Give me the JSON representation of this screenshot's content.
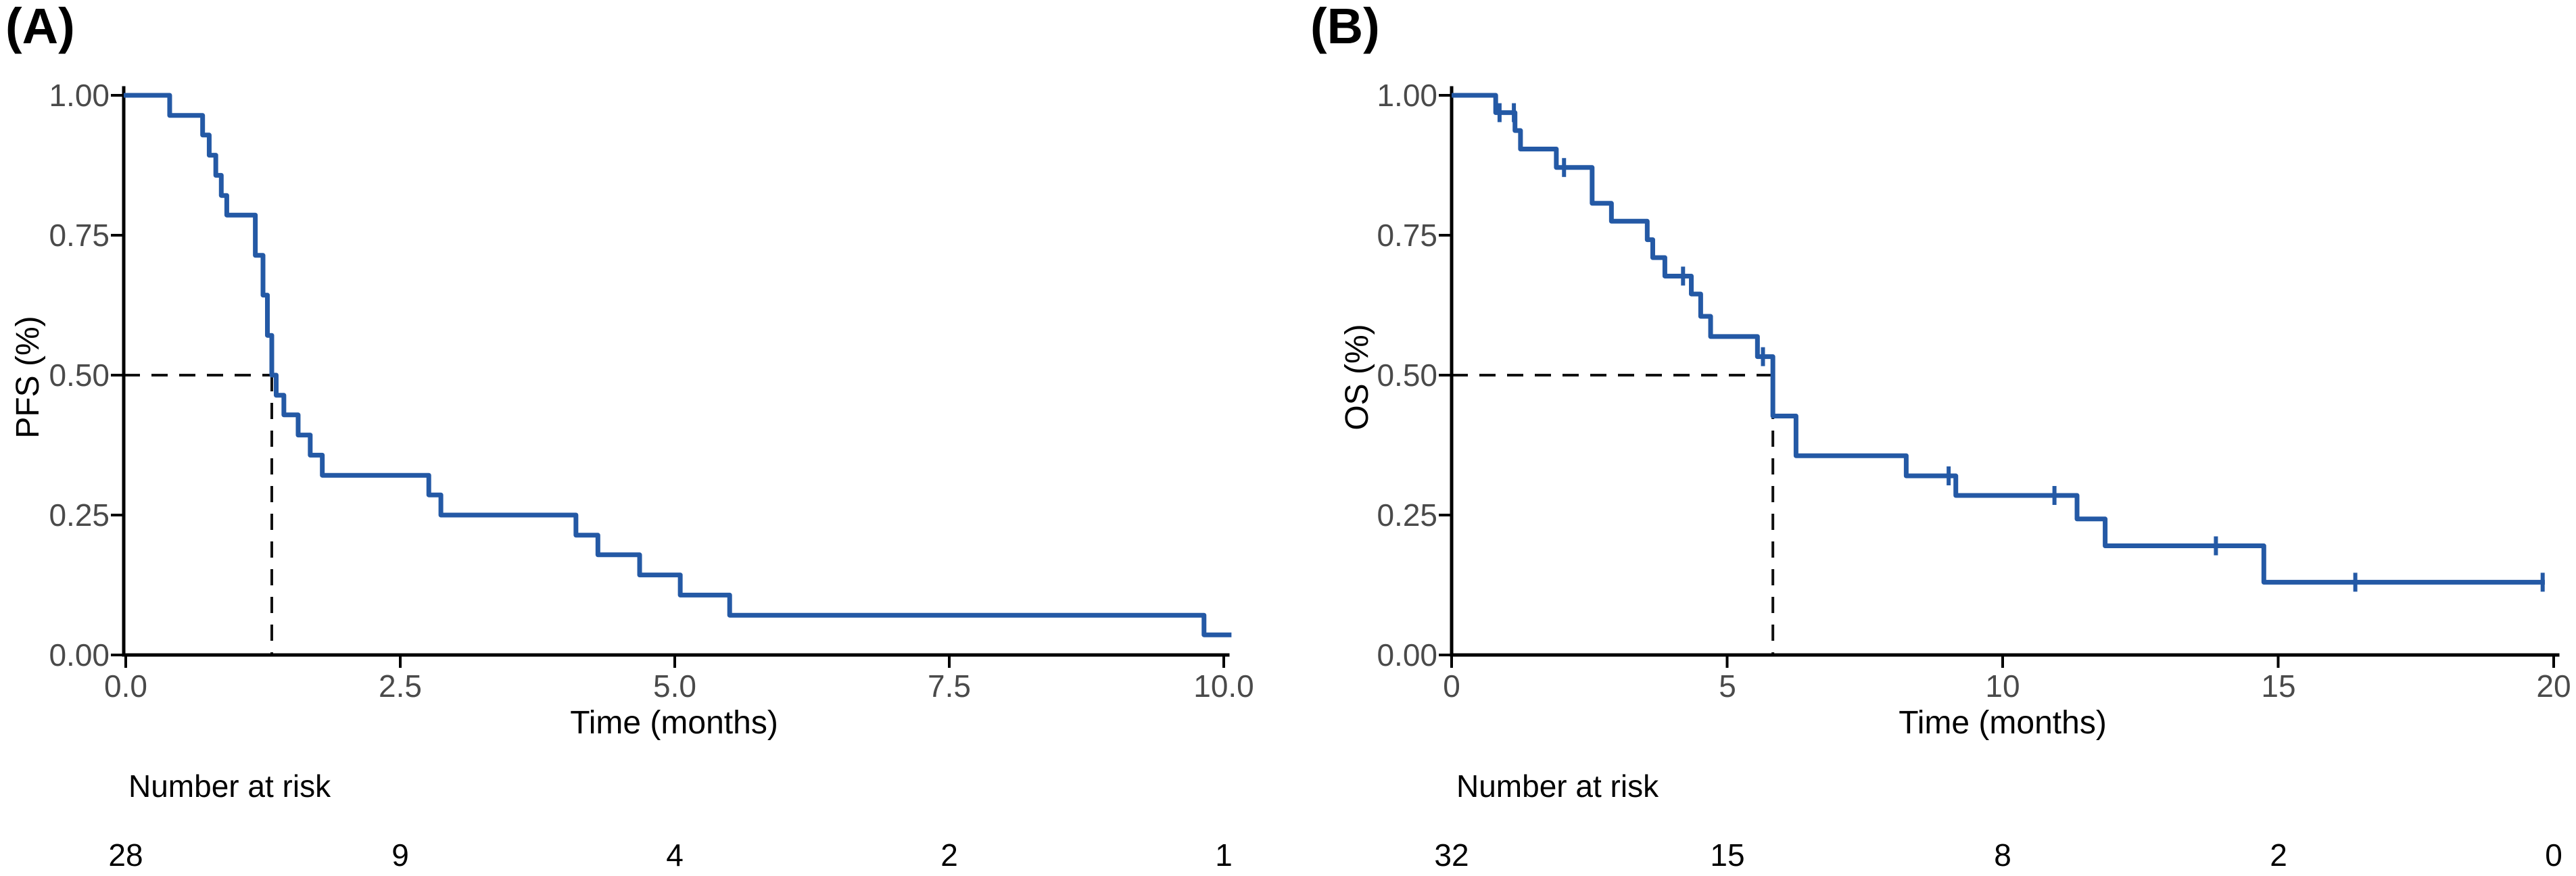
{
  "style": {
    "curve_color": "#2459a5",
    "axis_color": "#000000",
    "tick_label_color": "#4a4a4a",
    "dashed_color": "#111111",
    "background": "#ffffff"
  },
  "chart_data": [
    {
      "type": "line",
      "subtype": "kaplan-meier-step",
      "panel_label": "(A)",
      "xlabel": "Time (months)",
      "ylabel": "PFS (%)",
      "xlim": [
        0,
        10
      ],
      "ylim": [
        0,
        1
      ],
      "xtick_labels": [
        "0.0",
        "2.5",
        "5.0",
        "7.5",
        "10.0"
      ],
      "xtick_values": [
        0,
        2.5,
        5,
        7.5,
        10
      ],
      "ytick_labels": [
        "1.00",
        "0.75",
        "0.50",
        "0.25",
        "0.00"
      ],
      "ytick_values": [
        1.0,
        0.75,
        0.5,
        0.25,
        0
      ],
      "median_months": 1.33,
      "median_reference_level": 0.5,
      "grid": "off",
      "legend": "none",
      "series": [
        {
          "name": "PFS",
          "color": "#2459a5",
          "start": [
            0,
            1.0
          ],
          "steps": [
            [
              0.4,
              0.964
            ],
            [
              0.7,
              0.929
            ],
            [
              0.76,
              0.893
            ],
            [
              0.82,
              0.857
            ],
            [
              0.87,
              0.821
            ],
            [
              0.92,
              0.786
            ],
            [
              1.18,
              0.714
            ],
            [
              1.25,
              0.643
            ],
            [
              1.29,
              0.571
            ],
            [
              1.33,
              0.5
            ],
            [
              1.37,
              0.464
            ],
            [
              1.44,
              0.429
            ],
            [
              1.57,
              0.393
            ],
            [
              1.68,
              0.357
            ],
            [
              1.79,
              0.321
            ],
            [
              2.76,
              0.286
            ],
            [
              2.87,
              0.25
            ],
            [
              4.1,
              0.214
            ],
            [
              4.3,
              0.179
            ],
            [
              4.68,
              0.143
            ],
            [
              5.05,
              0.107
            ],
            [
              5.5,
              0.071
            ],
            [
              9.82,
              0.036
            ]
          ],
          "end_time": 10.07,
          "censor_marks": []
        }
      ],
      "number_at_risk": {
        "header": "Number at risk",
        "times": [
          0,
          2.5,
          5,
          7.5,
          10
        ],
        "values": [
          "28",
          "9",
          "4",
          "2",
          "1"
        ]
      }
    },
    {
      "type": "line",
      "subtype": "kaplan-meier-step",
      "panel_label": "(B)",
      "xlabel": "Time (months)",
      "ylabel": "OS (%)",
      "xlim": [
        0,
        20
      ],
      "ylim": [
        0,
        1
      ],
      "xtick_labels": [
        "0",
        "5",
        "10",
        "15",
        "20"
      ],
      "xtick_values": [
        0,
        5,
        10,
        15,
        20
      ],
      "ytick_labels": [
        "1.00",
        "0.75",
        "0.50",
        "0.25",
        "0.00"
      ],
      "ytick_values": [
        1.0,
        0.75,
        0.5,
        0.25,
        0
      ],
      "median_months": 5.83,
      "median_reference_level": 0.5,
      "grid": "off",
      "legend": "none",
      "series": [
        {
          "name": "OS",
          "color": "#2459a5",
          "start": [
            0,
            1.0
          ],
          "steps": [
            [
              0.8,
              0.969
            ],
            [
              1.15,
              0.937
            ],
            [
              1.25,
              0.904
            ],
            [
              1.9,
              0.871
            ],
            [
              2.55,
              0.807
            ],
            [
              2.9,
              0.775
            ],
            [
              3.55,
              0.742
            ],
            [
              3.65,
              0.71
            ],
            [
              3.87,
              0.677
            ],
            [
              4.35,
              0.645
            ],
            [
              4.52,
              0.605
            ],
            [
              4.7,
              0.569
            ],
            [
              5.55,
              0.533
            ],
            [
              5.83,
              0.427
            ],
            [
              6.25,
              0.356
            ],
            [
              8.25,
              0.32
            ],
            [
              9.15,
              0.285
            ],
            [
              11.35,
              0.243
            ],
            [
              11.86,
              0.195
            ],
            [
              14.74,
              0.13
            ]
          ],
          "end_time": 19.84,
          "censor_marks": [
            [
              0.87,
              0.969
            ],
            [
              1.13,
              0.969
            ],
            [
              2.04,
              0.871
            ],
            [
              4.2,
              0.677
            ],
            [
              5.65,
              0.533
            ],
            [
              9.02,
              0.32
            ],
            [
              10.94,
              0.285
            ],
            [
              13.87,
              0.195
            ],
            [
              16.4,
              0.13
            ],
            [
              19.8,
              0.13
            ]
          ]
        }
      ],
      "number_at_risk": {
        "header": "Number at risk",
        "times": [
          0,
          5,
          10,
          15,
          20
        ],
        "values": [
          "32",
          "15",
          "8",
          "2",
          "0"
        ]
      }
    }
  ]
}
